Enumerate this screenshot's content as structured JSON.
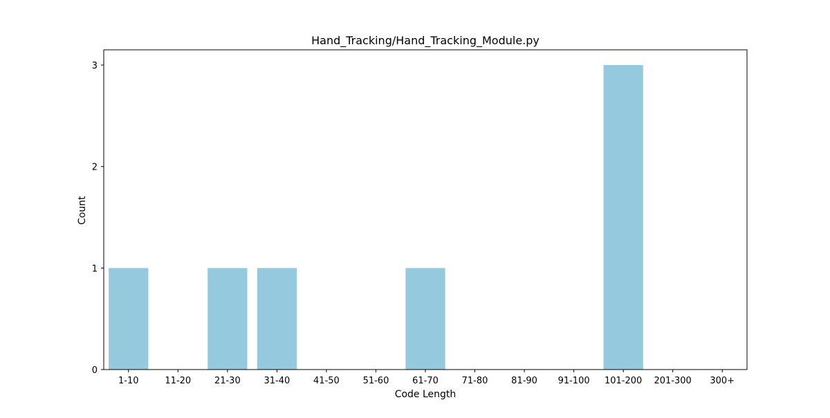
{
  "chart_data": {
    "type": "bar",
    "title": "Hand_Tracking/Hand_Tracking_Module.py",
    "xlabel": "Code Length",
    "ylabel": "Count",
    "categories": [
      "1-10",
      "11-20",
      "21-30",
      "31-40",
      "41-50",
      "51-60",
      "61-70",
      "71-80",
      "81-90",
      "91-100",
      "101-200",
      "201-300",
      "300+"
    ],
    "values": [
      1,
      0,
      1,
      1,
      0,
      0,
      1,
      0,
      0,
      0,
      3,
      0,
      0
    ],
    "ylim": [
      0,
      3.15
    ],
    "yticks": [
      0,
      1,
      2,
      3
    ],
    "grid": false,
    "bar_color": "#95c9de"
  }
}
